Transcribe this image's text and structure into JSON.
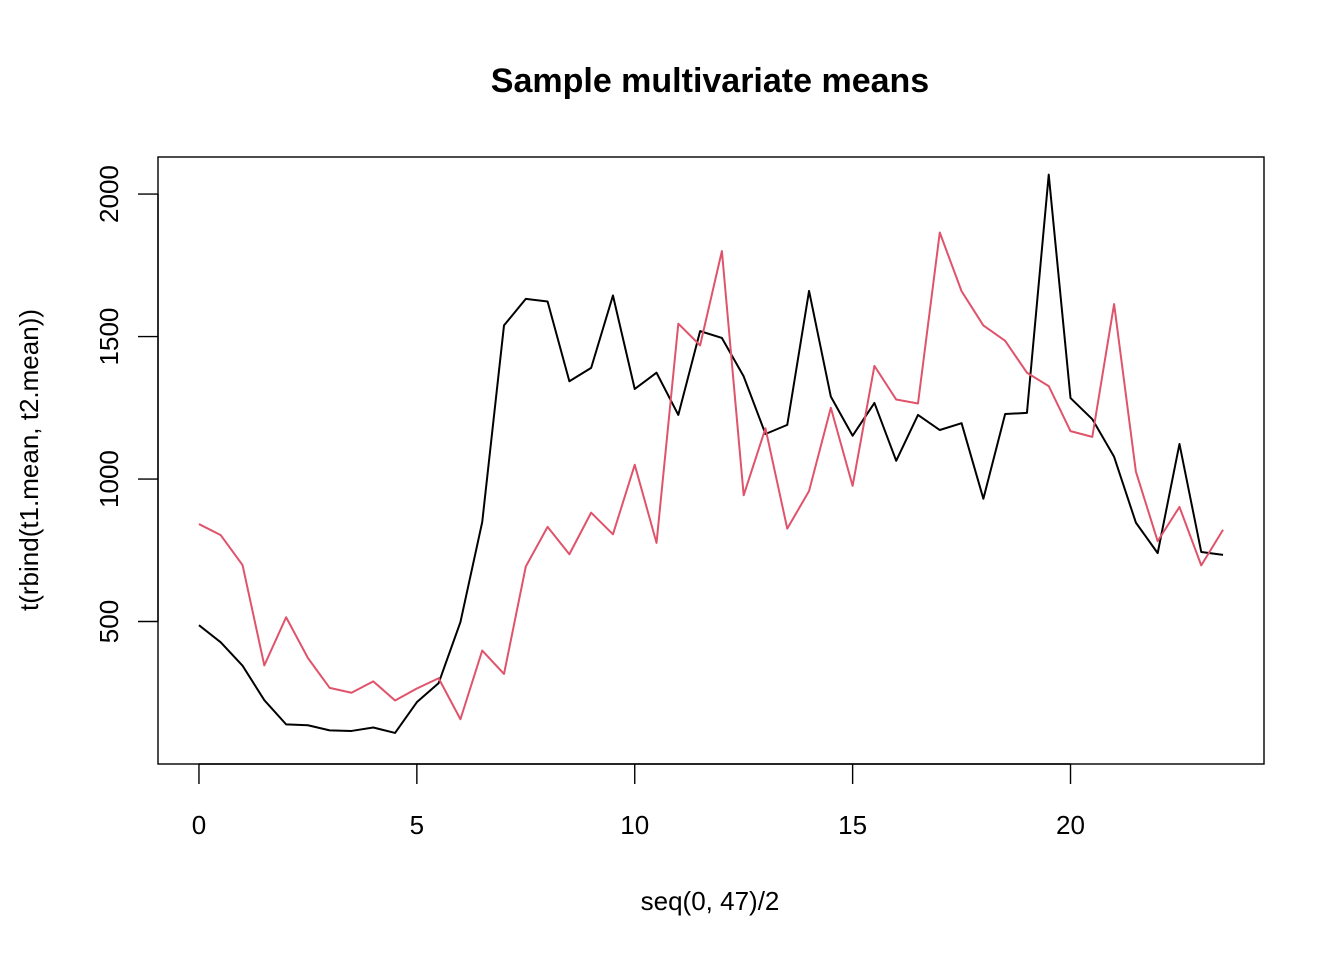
{
  "chart_data": {
    "type": "line",
    "title": "Sample multivariate means",
    "xlabel": "seq(0, 47)/2",
    "ylabel": "t(rbind(t1.mean, t2.mean))",
    "xlim": [
      -0.94,
      24.44
    ],
    "ylim": [
      0,
      2130
    ],
    "x_ticks": [
      0,
      5,
      10,
      15,
      20
    ],
    "y_ticks": [
      500,
      1000,
      1500,
      2000
    ],
    "x_tick_labels": [
      "0",
      "5",
      "10",
      "15",
      "20"
    ],
    "y_tick_labels": [
      "500",
      "1000",
      "1500",
      "2000"
    ],
    "grid": false,
    "legend": "none",
    "x": [
      0,
      0.5,
      1,
      1.5,
      2,
      2.5,
      3,
      3.5,
      4,
      4.5,
      5,
      5.5,
      6,
      6.5,
      7,
      7.5,
      8,
      8.5,
      9,
      9.5,
      10,
      10.5,
      11,
      11.5,
      12,
      12.5,
      13,
      13.5,
      14,
      14.5,
      15,
      15.5,
      16,
      16.5,
      17,
      17.5,
      18,
      18.5,
      19,
      19.5,
      20,
      20.5,
      21,
      21.5,
      22,
      22.5,
      23,
      23.5
    ],
    "series": [
      {
        "color": "#000000",
        "values": [
          487,
          427,
          345,
          224,
          139,
          136,
          118,
          116,
          128,
          109,
          217,
          284,
          498,
          849,
          1539,
          1632,
          1623,
          1343,
          1390,
          1644,
          1316,
          1373,
          1225,
          1519,
          1495,
          1360,
          1158,
          1190,
          1660,
          1289,
          1152,
          1267,
          1064,
          1225,
          1172,
          1196,
          931,
          1228,
          1232,
          2068,
          1284,
          1210,
          1078,
          847,
          740,
          1123,
          744,
          734
        ]
      },
      {
        "color": "#DF536B",
        "values": [
          842,
          803,
          698,
          346,
          515,
          372,
          267,
          250,
          290,
          223,
          265,
          301,
          157,
          398,
          316,
          693,
          832,
          736,
          882,
          806,
          1050,
          776,
          1545,
          1469,
          1800,
          943,
          1178,
          826,
          958,
          1250,
          976,
          1397,
          1279,
          1265,
          1865,
          1659,
          1539,
          1485,
          1373,
          1326,
          1168,
          1148,
          1614,
          1026,
          782,
          902,
          697,
          822
        ]
      }
    ]
  }
}
